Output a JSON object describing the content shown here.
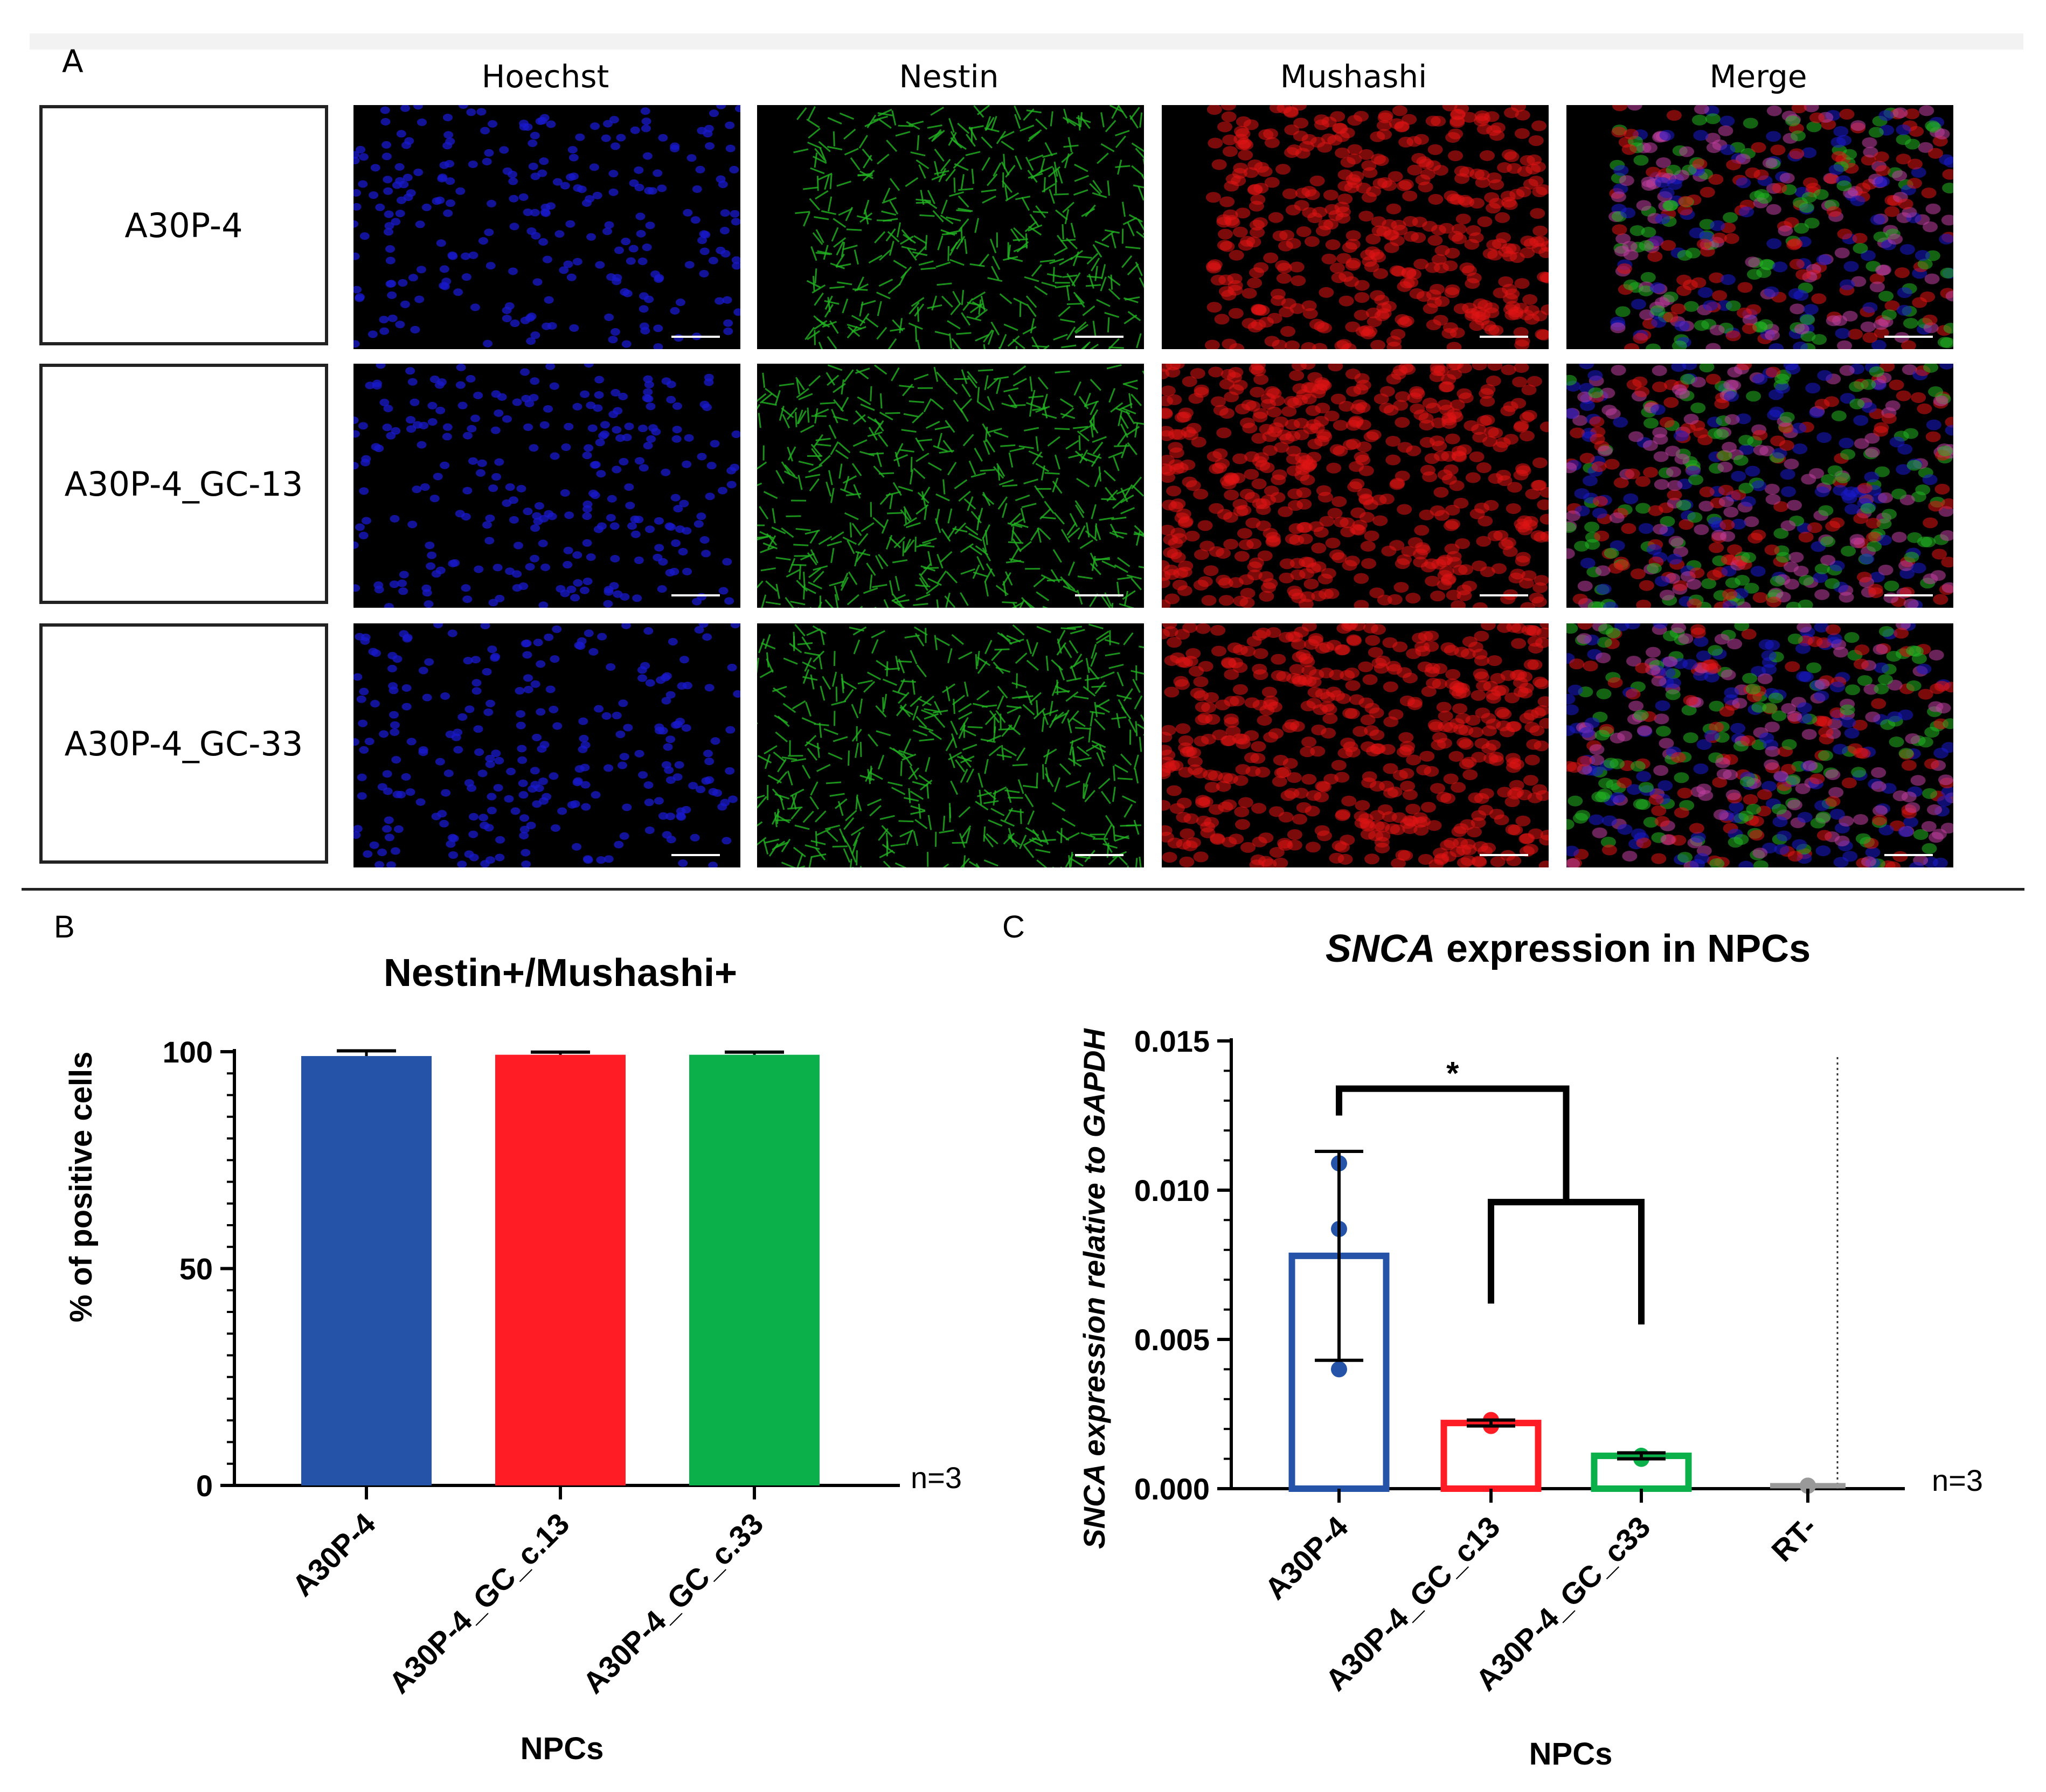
{
  "panel_a": {
    "letter": "A",
    "columns": [
      "Hoechst",
      "Nestin",
      "Mushashi",
      "Merge"
    ],
    "rows": [
      "A30P-4",
      "A30P-4_GC-13",
      "A30P-4_GC-33"
    ],
    "colors": {
      "hoechst": "#1a1acc",
      "nestin": "#22b522",
      "mushashi": "#e01414"
    }
  },
  "chart_data": [
    {
      "panel": "B",
      "type": "bar",
      "title": "Nestin+/Mushashi+",
      "xlabel": "NPCs",
      "ylabel": "% of positive cells",
      "categories": [
        "A30P-4",
        "A30P-4_GC_c.13",
        "A30P-4_GC_c.33"
      ],
      "values": [
        99,
        99.3,
        99.3
      ],
      "errors": [
        1.2,
        0.6,
        0.6
      ],
      "colors": [
        "#2453a8",
        "#ff1c24",
        "#0bb04a"
      ],
      "ylim": [
        0,
        100
      ],
      "yticks": [
        "0",
        "50",
        "100"
      ],
      "ytick_values": [
        0,
        50,
        100
      ],
      "annotation": "n=3"
    },
    {
      "panel": "C",
      "type": "bar",
      "title_italic": "SNCA",
      "title_rest": " expression in NPCs",
      "xlabel": "NPCs",
      "ylabel_italic": "SNCA expression relative to GAPDH",
      "categories": [
        "A30P-4",
        "A30P-4_GC_c13",
        "A30P-4_GC_c33",
        "RT-"
      ],
      "values": [
        0.0078,
        0.0022,
        0.0011,
        0.0001
      ],
      "errors": [
        0.0035,
        0.0001,
        0.0001,
        0
      ],
      "points": [
        [
          0.0109,
          0.0087,
          0.004
        ],
        [
          0.0023,
          0.0022,
          0.0021
        ],
        [
          0.0011,
          0.0011,
          0.001
        ],
        [
          0.0001,
          0.0001,
          0.0001
        ]
      ],
      "colors": [
        "#2453a8",
        "#ff1c24",
        "#0bb04a",
        "#999999"
      ],
      "ylim": [
        0,
        0.015
      ],
      "yticks": [
        "0.000",
        "0.005",
        "0.010",
        "0.015"
      ],
      "ytick_values": [
        0,
        0.005,
        0.01,
        0.015
      ],
      "significance": "*",
      "annotation": "n=3"
    }
  ]
}
